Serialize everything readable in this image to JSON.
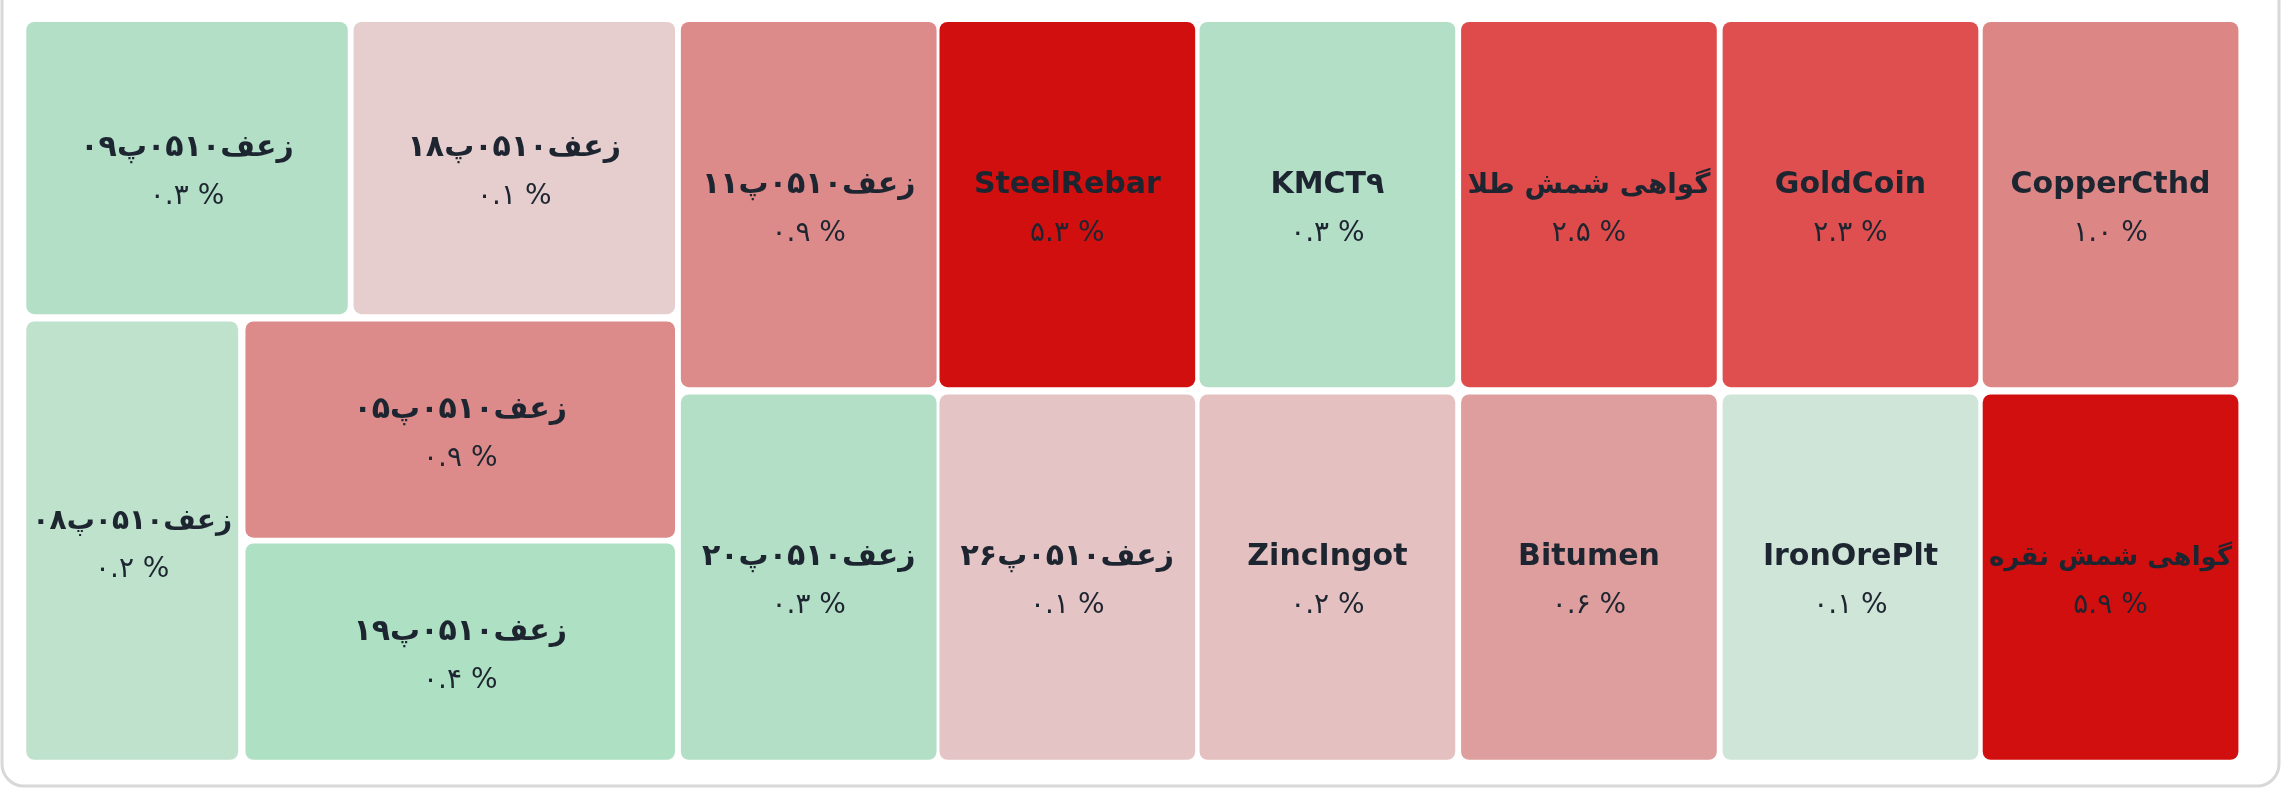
{
  "chart_data": {
    "type": "other",
    "categories": [
      "زعف۰۵۱۰پ۰۹",
      "زعف۰۵۱۰پ۱۸",
      "زعف۰۵۱۰پ۰۸",
      "زعف۰۵۱۰پ۰۵",
      "زعف۰۵۱۰پ۱۹",
      "زعف۰۵۱۰پ۱۱",
      "SteelRebar",
      "KMCT۹",
      "گواهی شمش طلا",
      "GoldCoin",
      "CopperCthd",
      "زعف۰۵۱۰پ۲۰",
      "زعف۰۵۱۰پ۲۶",
      "ZincIngot",
      "Bitumen",
      "IronOrePlt",
      "گواهی شمش نقره"
    ],
    "values": [
      0.3,
      0.1,
      0.2,
      0.9,
      0.4,
      0.9,
      5.3,
      0.3,
      2.5,
      2.3,
      1.0,
      0.3,
      0.1,
      0.2,
      0.6,
      0.1,
      5.9
    ],
    "value_labels": [
      "۰.۳ %",
      "۰.۱ %",
      "۰.۲ %",
      "۰.۹ %",
      "۰.۴ %",
      "۰.۹ %",
      "۵.۳ %",
      "۰.۳ %",
      "۲.۵ %",
      "۲.۳ %",
      "۱.۰ %",
      "۰.۳ %",
      "۰.۱ %",
      "۰.۲ %",
      "۰.۶ %",
      "۰.۱ %",
      "۵.۹ %"
    ],
    "colors": [
      "#b2dfc6",
      "#e6cdce",
      "#bfe2cd",
      "#dc8b8a",
      "#aee0c3",
      "#dc8b8a",
      "#d20f0f",
      "#b2dfc6",
      "#df4b4b",
      "#df4f4f",
      "#dc8685",
      "#b2dfc6",
      "#e5c4c5",
      "#e4c0c0",
      "#de9e9d",
      "#cfe5d7",
      "#d20f0f"
    ]
  }
}
